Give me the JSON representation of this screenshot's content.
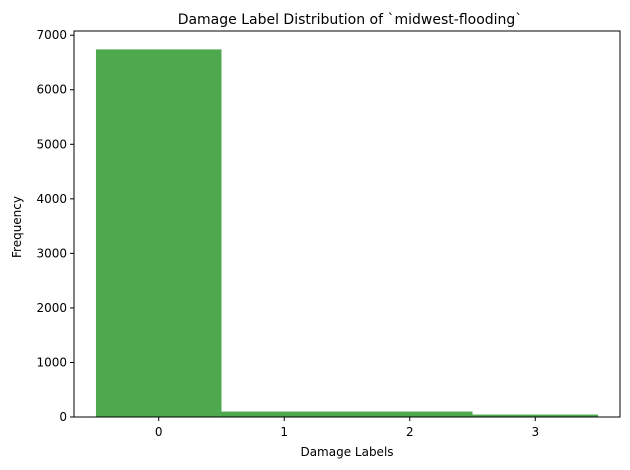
{
  "chart_data": {
    "type": "bar",
    "title": "Damage Label Distribution of `midwest-flooding`",
    "xlabel": "Damage Labels",
    "ylabel": "Frequency",
    "bars": [
      {
        "label": "0",
        "x_start": -0.5,
        "x_end": 0.5,
        "value": 6740
      },
      {
        "label": "1–2",
        "x_start": 0.5,
        "x_end": 2.5,
        "value": 100
      },
      {
        "label": "3",
        "x_start": 2.5,
        "x_end": 3.5,
        "value": 45
      }
    ],
    "x_ticks": [
      0,
      1,
      2,
      3
    ],
    "x_tick_labels": [
      "0",
      "1",
      "2",
      "3"
    ],
    "y_ticks": [
      0,
      1000,
      2000,
      3000,
      4000,
      5000,
      6000,
      7000
    ],
    "y_tick_labels": [
      "0",
      "1000",
      "2000",
      "3000",
      "4000",
      "5000",
      "6000",
      "7000"
    ],
    "xlim": [
      -0.675,
      3.675
    ],
    "ylim": [
      0,
      7077
    ],
    "grid": false,
    "legend": "none",
    "colors": {
      "bar": "#4ea84e",
      "axis": "#000000"
    }
  }
}
